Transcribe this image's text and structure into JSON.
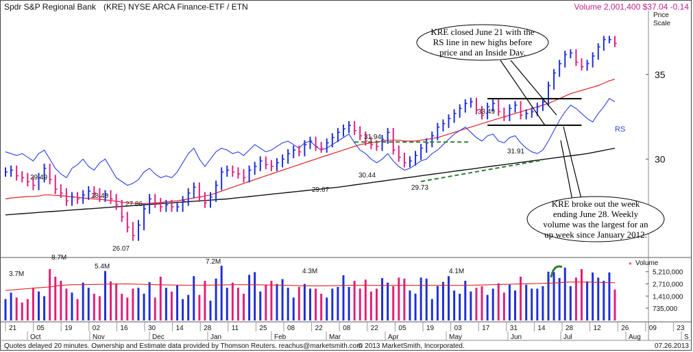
{
  "header": {
    "title": "Spdr S&P Regional Bank",
    "symbol": "(KRE) NYSE ARCA Finance-ETF / ETN",
    "volume_price": "Volume 2,001,400 $37.04 -0.14"
  },
  "price_scale_label": [
    "Price",
    "Scale"
  ],
  "footer": {
    "left": "Quotes delayed 20 minutes.  Ownership and Estimate data provided by Thomson Reuters. reachus@marketsmith.com",
    "center": "© 2013 MarketSmith, Incorporated.",
    "right": "07.26.2013"
  },
  "colors": {
    "up_bar": "#1e2fd6",
    "down_bar": "#e0207a",
    "ma50": "#e02020",
    "ma200": "#111111",
    "rs_line": "#2a3fe0",
    "trend": "#2e7d2e",
    "volume_avg": "#e02020",
    "header_right": "#c0208a"
  },
  "callouts": [
    "KRE closed June 21 with the RS line in new highs before price and an Inside Day.",
    "KRE broke out the week ending June 28. Weekly volume was the largest for an up week since January 2012."
  ],
  "chart_data": [
    {
      "type": "line",
      "title": "",
      "y_ticks": [
        30,
        35
      ],
      "y_tick_labels": [
        "30",
        "35"
      ],
      "ylim": [
        25.2,
        39.2
      ],
      "log_scale": true,
      "rs_label": "RS",
      "price_annotations": [
        "29.49",
        "28.40",
        "27.86",
        "26.07",
        "29.67",
        "30.44",
        "31.94",
        "29.73",
        "33.49",
        "31.91"
      ],
      "base_lines": [
        33.49,
        31.91
      ],
      "x_labels_days": [
        "21",
        "05",
        "19",
        "02",
        "16",
        "30",
        "14",
        "28",
        "11",
        "25",
        "08",
        "22",
        "08",
        "22",
        "05",
        "19",
        "03",
        "17",
        "31",
        "14",
        "28",
        "12",
        "26",
        "09",
        "23"
      ],
      "x_labels_months": [
        "Oct",
        "Nov",
        "Dec",
        "Jan",
        "Feb",
        "Mar",
        "Apr",
        "May",
        "Jun",
        "Jul",
        "Aug",
        "S"
      ],
      "series": [
        {
          "name": "KRE",
          "values": [
            29.3,
            29.4,
            29.1,
            29.0,
            28.8,
            28.6,
            29.0,
            29.5,
            28.9,
            28.4,
            28.2,
            27.8,
            28.0,
            27.9,
            28.1,
            28.3,
            28.2,
            28.0,
            28.1,
            27.9,
            27.6,
            27.0,
            26.5,
            26.1,
            26.6,
            27.4,
            27.9,
            27.7,
            27.5,
            27.6,
            27.5,
            27.5,
            27.8,
            28.2,
            28.5,
            28.0,
            27.7,
            28.0,
            28.6,
            29.3,
            29.4,
            29.3,
            29.2,
            29.0,
            29.4,
            29.6,
            29.9,
            29.7,
            29.6,
            29.8,
            30.0,
            30.3,
            30.5,
            30.4,
            30.8,
            31.0,
            30.7,
            30.6,
            30.9,
            31.2,
            31.5,
            31.7,
            31.9,
            31.6,
            31.3,
            31.0,
            30.8,
            30.7,
            31.1,
            31.5,
            30.5,
            30.1,
            29.8,
            29.9,
            30.2,
            30.6,
            30.9,
            31.3,
            31.8,
            32.0,
            32.3,
            32.6,
            32.9,
            33.2,
            33.3,
            32.8,
            32.5,
            33.0,
            33.2,
            32.7,
            32.4,
            32.9,
            33.1,
            32.5,
            32.6,
            32.7,
            33.0,
            33.3,
            34.3,
            35.1,
            35.7,
            36.3,
            36.4,
            35.8,
            35.5,
            35.7,
            36.2,
            36.8,
            37.3,
            37.3,
            37.04
          ]
        },
        {
          "name": "50-day MA",
          "values": [
            27.9,
            27.95,
            27.97,
            28.0,
            28.02,
            28.03,
            28.05,
            28.1,
            28.1,
            28.08,
            28.06,
            28.04,
            28.0,
            27.98,
            27.95,
            27.92,
            27.9,
            27.88,
            27.85,
            27.82,
            27.78,
            27.74,
            27.7,
            27.68,
            27.66,
            27.66,
            27.68,
            27.7,
            27.72,
            27.75,
            27.78,
            27.8,
            27.85,
            27.9,
            27.95,
            28.0,
            28.05,
            28.1,
            28.2,
            28.3,
            28.4,
            28.5,
            28.6,
            28.7,
            28.8,
            28.9,
            29.0,
            29.1,
            29.2,
            29.3,
            29.4,
            29.5,
            29.6,
            29.7,
            29.8,
            29.9,
            30.0,
            30.1,
            30.2,
            30.3,
            30.4,
            30.5,
            30.6,
            30.7,
            30.8,
            30.85,
            30.9,
            30.95,
            31.0,
            31.05,
            31.05,
            31.05,
            31.0,
            31.0,
            31.0,
            31.05,
            31.1,
            31.15,
            31.2,
            31.3,
            31.4,
            31.5,
            31.6,
            31.7,
            31.8,
            31.9,
            32.0,
            32.1,
            32.2,
            32.3,
            32.4,
            32.5,
            32.6,
            32.7,
            32.8,
            32.9,
            33.0,
            33.1,
            33.2,
            33.35,
            33.5,
            33.65,
            33.8,
            33.9,
            34.0,
            34.1,
            34.2,
            34.3,
            34.45,
            34.6,
            34.7
          ]
        },
        {
          "name": "200-day MA",
          "values": [
            27.1,
            27.12,
            27.14,
            27.16,
            27.18,
            27.2,
            27.22,
            27.24,
            27.26,
            27.28,
            27.3,
            27.32,
            27.34,
            27.36,
            27.38,
            27.4,
            27.42,
            27.44,
            27.46,
            27.48,
            27.5,
            27.52,
            27.54,
            27.56,
            27.58,
            27.6,
            27.62,
            27.64,
            27.66,
            27.68,
            27.7,
            27.72,
            27.74,
            27.76,
            27.78,
            27.8,
            27.82,
            27.84,
            27.86,
            27.88,
            27.9,
            27.93,
            27.96,
            27.99,
            28.02,
            28.05,
            28.08,
            28.11,
            28.14,
            28.17,
            28.2,
            28.23,
            28.26,
            28.29,
            28.32,
            28.35,
            28.38,
            28.41,
            28.44,
            28.47,
            28.5,
            28.54,
            28.58,
            28.62,
            28.66,
            28.7,
            28.74,
            28.78,
            28.82,
            28.86,
            28.9,
            28.94,
            28.98,
            29.02,
            29.06,
            29.1,
            29.14,
            29.18,
            29.22,
            29.26,
            29.3,
            29.34,
            29.38,
            29.42,
            29.46,
            29.5,
            29.54,
            29.58,
            29.62,
            29.66,
            29.7,
            29.74,
            29.78,
            29.82,
            29.86,
            29.9,
            29.94,
            29.98,
            30.02,
            30.06,
            30.1,
            30.14,
            30.18,
            30.22,
            30.26,
            30.3,
            30.36,
            30.42,
            30.48,
            30.54,
            30.6
          ]
        },
        {
          "name": "RS",
          "values": [
            30.4,
            30.3,
            30.2,
            30.3,
            30.1,
            29.9,
            30.3,
            30.5,
            30.0,
            29.5,
            29.2,
            29.0,
            29.5,
            29.7,
            30.0,
            29.6,
            29.4,
            29.8,
            30.0,
            29.5,
            29.0,
            28.8,
            28.6,
            28.7,
            28.9,
            29.3,
            29.5,
            29.2,
            29.0,
            29.1,
            29.0,
            29.3,
            29.8,
            30.3,
            30.6,
            30.0,
            29.6,
            30.0,
            30.4,
            30.6,
            30.5,
            30.3,
            30.4,
            30.2,
            30.5,
            30.8,
            30.6,
            30.4,
            30.5,
            30.7,
            30.9,
            31.0,
            30.8,
            30.6,
            30.9,
            31.0,
            30.7,
            30.5,
            30.6,
            30.8,
            31.0,
            31.2,
            31.4,
            30.9,
            30.5,
            30.3,
            30.0,
            29.8,
            30.0,
            30.3,
            29.9,
            29.6,
            29.4,
            29.5,
            29.7,
            29.9,
            30.0,
            30.3,
            30.5,
            30.8,
            31.1,
            31.4,
            31.6,
            31.8,
            31.5,
            31.2,
            31.0,
            31.3,
            31.4,
            31.0,
            30.9,
            31.2,
            31.3,
            30.9,
            30.6,
            30.4,
            30.3,
            30.5,
            31.0,
            31.6,
            32.2,
            32.7,
            33.1,
            32.9,
            32.6,
            32.3,
            32.1,
            32.6,
            33.0,
            33.5,
            33.3
          ]
        }
      ]
    },
    {
      "type": "bar",
      "title": "",
      "volume_label": "Volume",
      "y_tick_labels": [
        "5,210,000",
        "2,710,000",
        "1,410,000",
        "735,000"
      ],
      "y_ticks": [
        5210000,
        2710000,
        1410000,
        735000
      ],
      "ylim": [
        380000,
        10000000
      ],
      "volume_annotations": [
        "3.7M",
        "8.7M",
        "5.4M",
        "7.2M",
        "4.3M",
        "4.1M"
      ],
      "series": [
        {
          "name": "Volume",
          "values": [
            1.2,
            1.7,
            1.3,
            1.0,
            1.2,
            2.2,
            1.8,
            1.4,
            6.0,
            4.0,
            3.2,
            2.1,
            1.7,
            1.2,
            2.9,
            2.2,
            1.6,
            1.4,
            5.4,
            3.1,
            2.7,
            1.6,
            1.3,
            2.1,
            2.2,
            1.6,
            3.0,
            1.3,
            4.0,
            2.2,
            1.8,
            2.5,
            1.2,
            1.5,
            4.1,
            1.5,
            3.2,
            1.1,
            3.6,
            7.2,
            2.2,
            2.9,
            2.2,
            1.6,
            4.4,
            5.1,
            1.8,
            2.6,
            3.2,
            2.7,
            3.5,
            2.2,
            1.3,
            2.3,
            2.7,
            2.1,
            2.1,
            1.6,
            1.3,
            2.1,
            2.3,
            4.3,
            2.3,
            3.2,
            2.1,
            3.4,
            1.8,
            2.1,
            3.7,
            2.9,
            2.4,
            3.8,
            3.6,
            1.9,
            1.6,
            3.8,
            3.6,
            1.2,
            2.4,
            3.0,
            4.1,
            1.9,
            1.6,
            3.2,
            1.8,
            2.2,
            2.4,
            1.5,
            2.1,
            2.8,
            1.7,
            2.6,
            1.9,
            4.0,
            2.6,
            2.1,
            2.1,
            2.4,
            5.2,
            5.1,
            3.7,
            6.5,
            2.4,
            3.8,
            6.0,
            3.1,
            5.0,
            3.8,
            3.2,
            5.0,
            2.0
          ]
        },
        {
          "name": "50-day avg volume",
          "values": [
            1.9,
            1.95,
            2.0,
            2.05,
            2.1,
            2.15,
            2.2,
            2.25,
            2.3,
            2.4,
            2.5,
            2.55,
            2.6,
            2.6,
            2.6,
            2.62,
            2.63,
            2.64,
            2.66,
            2.68,
            2.7,
            2.7,
            2.7,
            2.68,
            2.66,
            2.64,
            2.62,
            2.6,
            2.58,
            2.56,
            2.55,
            2.54,
            2.53,
            2.52,
            2.52,
            2.52,
            2.53,
            2.54,
            2.55,
            2.56,
            2.58,
            2.6,
            2.6,
            2.6,
            2.6,
            2.6,
            2.58,
            2.56,
            2.55,
            2.54,
            2.52,
            2.5,
            2.48,
            2.46,
            2.45,
            2.44,
            2.44,
            2.44,
            2.45,
            2.46,
            2.47,
            2.48,
            2.5,
            2.5,
            2.5,
            2.5,
            2.5,
            2.5,
            2.5,
            2.5,
            2.5,
            2.5,
            2.5,
            2.5,
            2.5,
            2.5,
            2.5,
            2.5,
            2.5,
            2.5,
            2.5,
            2.5,
            2.5,
            2.5,
            2.52,
            2.54,
            2.56,
            2.58,
            2.6,
            2.62,
            2.64,
            2.66,
            2.68,
            2.7,
            2.72,
            2.74,
            2.76,
            2.78,
            2.8,
            2.85,
            2.9,
            2.95,
            3.0,
            3.0,
            3.0,
            2.98,
            2.96,
            2.94,
            2.92,
            2.9,
            2.9
          ]
        }
      ]
    }
  ]
}
